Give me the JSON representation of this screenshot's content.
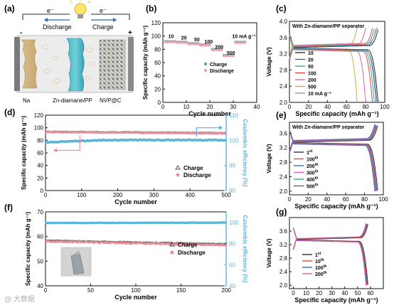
{
  "watermark": "@ 大数据",
  "panel_a": {
    "letter": "(a)",
    "electron_left": "e⁻",
    "electron_right": "e⁻",
    "discharge": "Discharge",
    "charge": "Charge",
    "minus": "-",
    "plus": "+",
    "label_na": "Na",
    "label_sep": "Zn-diamane/PP",
    "label_nvp": "NVP@C"
  },
  "chart_data": [
    {
      "id": "b",
      "letter": "(b)",
      "type": "scatter",
      "xlabel": "Cycle number",
      "ylabel": "Specific capacity (mAh g⁻¹)",
      "xlim": [
        0,
        40
      ],
      "ylim": [
        0,
        120
      ],
      "xticks": [
        0,
        10,
        20,
        30,
        40
      ],
      "yticks": [
        0,
        20,
        40,
        60,
        80,
        100,
        120
      ],
      "rate_labels": [
        {
          "text": "10",
          "x": 3.5,
          "y": 97
        },
        {
          "text": "20",
          "x": 9,
          "y": 95
        },
        {
          "text": "50",
          "x": 14.5,
          "y": 92
        },
        {
          "text": "100",
          "x": 19.5,
          "y": 89
        },
        {
          "text": "200",
          "x": 24,
          "y": 81
        },
        {
          "text": "500",
          "x": 29,
          "y": 72
        },
        {
          "text": "10 mA g⁻¹",
          "x": 34.5,
          "y": 97
        }
      ],
      "rate_blocks": [
        {
          "from": 1,
          "to": 5,
          "value": 91
        },
        {
          "from": 6,
          "to": 10,
          "value": 90
        },
        {
          "from": 11,
          "to": 15,
          "value": 88
        },
        {
          "from": 16,
          "to": 20,
          "value": 86
        },
        {
          "from": 21,
          "to": 25,
          "value": 79
        },
        {
          "from": 26,
          "to": 30,
          "value": 70
        },
        {
          "from": 31,
          "to": 35,
          "value": 90
        }
      ],
      "series": [
        {
          "name": "Charge",
          "color": "#5aa5a8"
        },
        {
          "name": "Discharge",
          "color": "#f0a0ac"
        }
      ],
      "legend": "center-right"
    },
    {
      "id": "c",
      "letter": "(c)",
      "type": "line",
      "annotation": "With Zn-diamane/PP separator",
      "xlabel": "Specific capacity (mAh g⁻¹)",
      "ylabel": "Voltage (V)",
      "xlim": [
        0,
        100
      ],
      "ylim": [
        2.0,
        4.0
      ],
      "xticks": [
        0,
        20,
        40,
        60,
        80,
        100
      ],
      "yticks": [
        2.0,
        2.4,
        2.8,
        3.2,
        3.6,
        4.0
      ],
      "series": [
        {
          "name": "10",
          "color": "#2f2f2f",
          "cap": 93
        },
        {
          "name": "20",
          "color": "#2f6fb0",
          "cap": 91
        },
        {
          "name": "50",
          "color": "#3aa9a0",
          "cap": 89
        },
        {
          "name": "100",
          "color": "#e24a3b",
          "cap": 87
        },
        {
          "name": "200",
          "color": "#e85fa8",
          "cap": 80
        },
        {
          "name": "500",
          "color": "#c8b03a",
          "cap": 71
        },
        {
          "name": "10 mA g⁻¹",
          "color": "#9a9a9a",
          "cap": 92
        }
      ],
      "legend": "lower-left"
    },
    {
      "id": "d",
      "letter": "(d)",
      "type": "scatter",
      "xlabel": "Cycle number",
      "ylabel": "Specific capacity (mAh g⁻¹)",
      "y2label": "Coulombic efficiency (%)",
      "xlim": [
        0,
        500
      ],
      "ylim": [
        0,
        120
      ],
      "y2lim": [
        80,
        110
      ],
      "xticks": [
        0,
        100,
        200,
        300,
        400,
        500
      ],
      "yticks": [
        0,
        20,
        40,
        60,
        80,
        100,
        120
      ],
      "y2ticks": [
        80,
        90,
        100,
        110
      ],
      "capacity": {
        "start": 93,
        "end": 91
      },
      "efficiency": {
        "start": 99.2,
        "end": 100.1
      },
      "series": [
        {
          "name": "Charge",
          "color": "#555555"
        },
        {
          "name": "Discharge",
          "color": "#f08f9c"
        },
        {
          "name": "Coulombic efficiency",
          "color": "#5bb5d6"
        }
      ],
      "legend": "bottom-right"
    },
    {
      "id": "e",
      "letter": "(e)",
      "type": "line",
      "annotation": "With Zn-diamane/PP separator",
      "xlabel": "Specific capacity (mAh g⁻¹)",
      "ylabel": "Voltage (V)",
      "xlim": [
        0,
        100
      ],
      "ylim": [
        1.9,
        3.9
      ],
      "xticks": [
        0,
        20,
        40,
        60,
        80,
        100
      ],
      "yticks": [
        2.0,
        2.4,
        2.8,
        3.2,
        3.6
      ],
      "series": [
        {
          "name": "1st",
          "base": "1",
          "sup": "st",
          "color": "#2f2f2f",
          "cap": 94
        },
        {
          "name": "100th",
          "base": "100",
          "sup": "th",
          "color": "#e24a3b",
          "cap": 93
        },
        {
          "name": "200th",
          "base": "200",
          "sup": "th",
          "color": "#2f6fb0",
          "cap": 92.5
        },
        {
          "name": "300th",
          "base": "300",
          "sup": "th",
          "color": "#e85fa8",
          "cap": 92
        },
        {
          "name": "400th",
          "base": "400",
          "sup": "th",
          "color": "#3aa9a0",
          "cap": 91.5
        },
        {
          "name": "500th",
          "base": "500",
          "sup": "th",
          "color": "#7a4fb0",
          "cap": 91
        }
      ],
      "legend": "lower-left"
    },
    {
      "id": "f",
      "letter": "(f)",
      "type": "scatter",
      "xlabel": "Cycle number",
      "ylabel": "Specific capacity (mAh g⁻¹)",
      "y2label": "Coulombic efficiency (%)",
      "xlim": [
        0,
        200
      ],
      "ylim": [
        40,
        70
      ],
      "y2lim": [
        40,
        110
      ],
      "xticks": [
        0,
        50,
        100,
        150,
        200
      ],
      "yticks": [
        40,
        50,
        60,
        70
      ],
      "y2ticks": [
        40,
        60,
        80,
        100
      ],
      "capacity": {
        "start": 58,
        "end": 56.5
      },
      "efficiency": {
        "start": 99.5,
        "end": 99.8
      },
      "series": [
        {
          "name": "Charge",
          "color": "#444444"
        },
        {
          "name": "Discharge",
          "color": "#f08f9c"
        },
        {
          "name": "Coulombic efficiency",
          "color": "#5bb5d6"
        }
      ],
      "legend": "bottom-right"
    },
    {
      "id": "g",
      "letter": "(g)",
      "type": "line",
      "xlabel": "Specific capacity (mAh g⁻¹)",
      "ylabel": "Voltage (V)",
      "xlim": [
        -3,
        70
      ],
      "ylim": [
        1.9,
        4.0
      ],
      "xticks": [
        0,
        10,
        20,
        30,
        40,
        50,
        60
      ],
      "yticks": [
        2.0,
        2.4,
        2.8,
        3.2,
        3.6
      ],
      "series": [
        {
          "name": "1st",
          "base": "1",
          "sup": "st",
          "color": "#2f2f2f",
          "cap": 58
        },
        {
          "name": "10th",
          "base": "10",
          "sup": "th",
          "color": "#e24a3b",
          "cap": 57.5
        },
        {
          "name": "100th",
          "base": "100",
          "sup": "th",
          "color": "#2f6fb0",
          "cap": 57
        },
        {
          "name": "200th",
          "base": "200",
          "sup": "th",
          "color": "#e85fa8",
          "cap": 56.5
        }
      ],
      "legend": "lower-left"
    }
  ]
}
